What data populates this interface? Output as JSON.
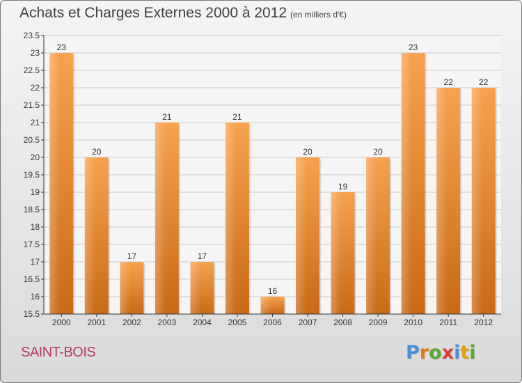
{
  "title": "Achats et Charges Externes 2000 à 2012",
  "subtitle": "(en milliers d'€)",
  "commune": "SAINT-BOIS",
  "logo": {
    "text": "Proxiti",
    "letters": [
      "P",
      "r",
      "o",
      "x",
      "i",
      "t",
      "i"
    ],
    "colors": [
      "#4a90d9",
      "#e07a10",
      "#59a832",
      "#d93b3b",
      "#4a90d9",
      "#e0a010",
      "#59a832"
    ]
  },
  "colors": {
    "bar": "#ef8a2c",
    "bar_dark": "#c96a16",
    "commune": "#b0386a",
    "axis": "#333333",
    "grid": "#cccccc"
  },
  "chart_data": {
    "type": "bar",
    "categories": [
      "2000",
      "2001",
      "2002",
      "2003",
      "2004",
      "2005",
      "2006",
      "2007",
      "2008",
      "2009",
      "2010",
      "2011",
      "2012"
    ],
    "values": [
      23,
      20,
      17,
      21,
      17,
      21,
      16,
      20,
      19,
      20,
      23,
      22,
      22
    ],
    "data_labels": [
      "23",
      "20",
      "17",
      "21",
      "17",
      "21",
      "16",
      "20",
      "19",
      "20",
      "23",
      "22",
      "22"
    ],
    "yticks": [
      "15.5",
      "16",
      "16.5",
      "17",
      "17.5",
      "18",
      "18.5",
      "19",
      "19.5",
      "20",
      "20.5",
      "21",
      "21.5",
      "22",
      "22.5",
      "23",
      "23.5"
    ],
    "ylim": [
      15.5,
      23.5
    ],
    "grid": true,
    "xlabel": "",
    "ylabel": ""
  }
}
